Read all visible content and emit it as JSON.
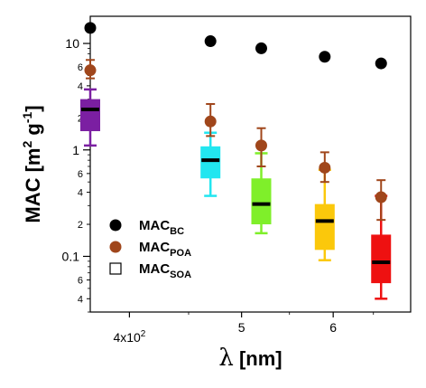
{
  "chart_data": {
    "type": "box-scatter",
    "title": "",
    "xlabel": {
      "symbol": "λ",
      "unit": "[nm]"
    },
    "ylabel": {
      "text": "MAC [m",
      "sup1": "2",
      "mid": " g",
      "sup2": "-1",
      "end": "]"
    },
    "x_scale": "log",
    "y_scale": "log",
    "xlim": [
      370,
      700
    ],
    "ylim": [
      0.03,
      18
    ],
    "x_ticks": [
      {
        "value": 400,
        "label": "4x10",
        "sup": "2"
      },
      {
        "value": 500,
        "label": "5"
      },
      {
        "value": 600,
        "label": "6"
      }
    ],
    "y_major_ticks": [
      {
        "value": 0.1,
        "label": "0.1"
      },
      {
        "value": 1,
        "label": "1"
      },
      {
        "value": 10,
        "label": "10"
      }
    ],
    "y_minor_ticks": [
      {
        "value": 0.04,
        "label": "4"
      },
      {
        "value": 0.06,
        "label": "6"
      },
      {
        "value": 0.2,
        "label": "2"
      },
      {
        "value": 0.4,
        "label": "4"
      },
      {
        "value": 0.6,
        "label": "6"
      },
      {
        "value": 2,
        "label": "2"
      },
      {
        "value": 4,
        "label": "4"
      },
      {
        "value": 6,
        "label": "6"
      }
    ],
    "wavelengths": [
      370,
      470,
      520,
      590,
      660
    ],
    "series": [
      {
        "name": "MAC",
        "sub": "BC",
        "marker": "filled-circle",
        "color": "#000000",
        "values": [
          14.0,
          10.5,
          9.0,
          7.5,
          6.5
        ]
      },
      {
        "name": "MAC",
        "sub": "POA",
        "marker": "filled-circle",
        "color": "#a0461b",
        "values": [
          5.6,
          1.85,
          1.1,
          0.68,
          0.36
        ],
        "err_low": [
          4.7,
          1.35,
          0.7,
          0.5,
          0.22
        ],
        "err_high": [
          7.0,
          2.7,
          1.6,
          0.95,
          0.52
        ]
      },
      {
        "name": "MAC",
        "sub": "SOA",
        "marker": "box",
        "boxes": [
          {
            "color": "#7b1fa2",
            "whisker_low": 1.1,
            "q1": 1.5,
            "median": 2.4,
            "q3": 3.0,
            "whisker_high": 3.7
          },
          {
            "color": "#22e6f0",
            "whisker_low": 0.37,
            "q1": 0.54,
            "median": 0.8,
            "q3": 1.08,
            "whisker_high": 1.45
          },
          {
            "color": "#7fef2a",
            "whisker_low": 0.165,
            "q1": 0.2,
            "median": 0.31,
            "q3": 0.54,
            "whisker_high": 0.93
          },
          {
            "color": "#fbc80b",
            "whisker_low": 0.092,
            "q1": 0.115,
            "median": 0.215,
            "q3": 0.31,
            "whisker_high": 0.65
          },
          {
            "color": "#ee1111",
            "whisker_low": 0.04,
            "q1": 0.056,
            "median": 0.088,
            "q3": 0.16,
            "whisker_high": 0.37
          }
        ]
      }
    ],
    "legend_placement": "bottom-left",
    "grid": false
  }
}
